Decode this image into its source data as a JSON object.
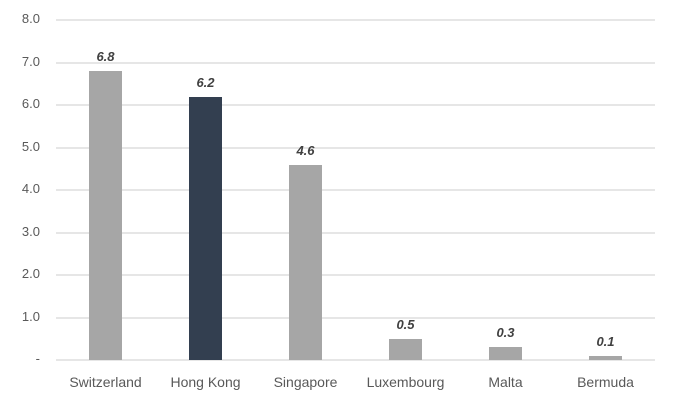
{
  "chart_data": {
    "type": "bar",
    "title": "",
    "xlabel": "",
    "ylabel": "",
    "ylim": [
      0,
      8
    ],
    "grid": true,
    "legend": null,
    "yticks": [
      "-",
      "1.0",
      "2.0",
      "3.0",
      "4.0",
      "5.0",
      "6.0",
      "7.0",
      "8.0"
    ],
    "categories": [
      "Switzerland",
      "Hong Kong",
      "Singapore",
      "Luxembourg",
      "Malta",
      "Bermuda"
    ],
    "values": [
      6.8,
      6.2,
      4.6,
      0.5,
      0.3,
      0.1
    ],
    "value_labels": [
      "6.8",
      "6.2",
      "4.6",
      "0.5",
      "0.3",
      "0.1"
    ],
    "highlight_index": 1,
    "colors": {
      "default": "#a6a6a6",
      "highlight": "#333f50",
      "grid": "#e6e6e6"
    }
  }
}
